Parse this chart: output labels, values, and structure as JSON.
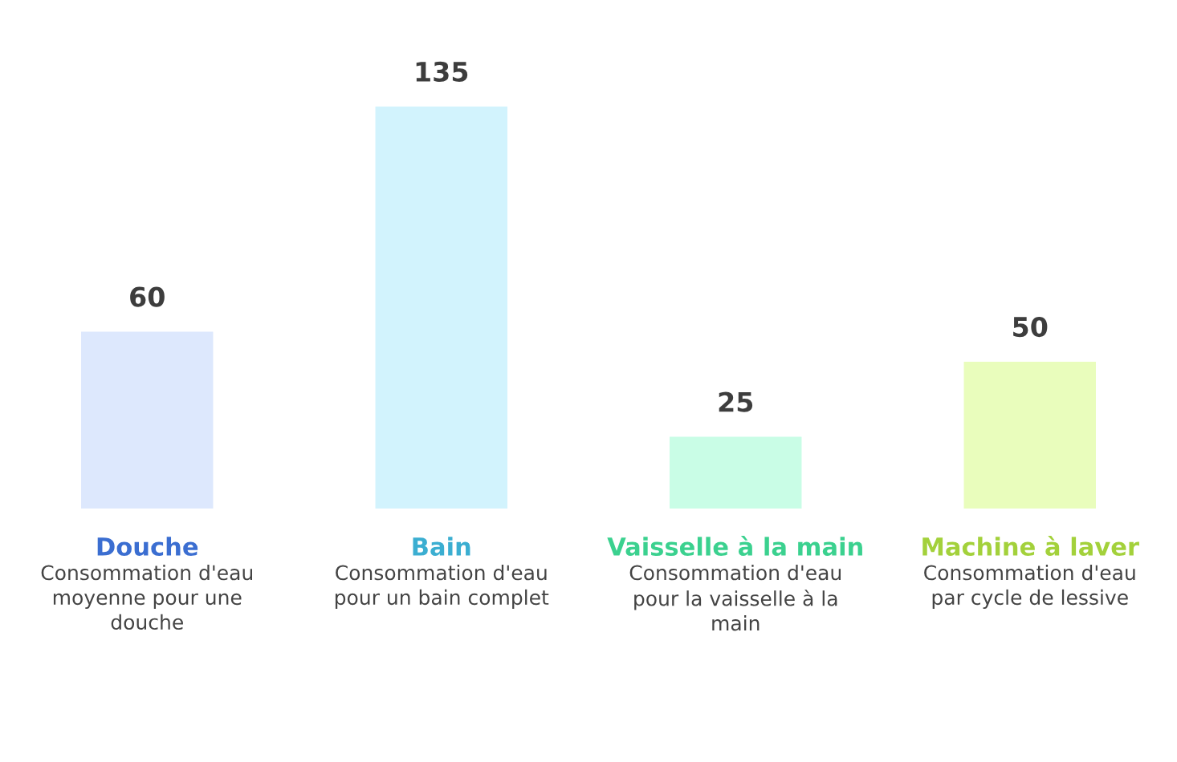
{
  "chart_data": {
    "type": "bar",
    "categories": [
      "Douche",
      "Bain",
      "Vaisselle à la main",
      "Machine à laver"
    ],
    "values": [
      60,
      135,
      25,
      50
    ],
    "colors": [
      "#dde8fd",
      "#d2f3fd",
      "#c9fde6",
      "#e9fdbc"
    ],
    "data_labels": true,
    "annotations": [
      "Consommation d'eau moyenne pour une douche",
      "Consommation d'eau pour un bain complet",
      "Consommation d'eau pour la vaisselle à la main",
      "Consommation d'eau par cycle de lessive"
    ]
  }
}
